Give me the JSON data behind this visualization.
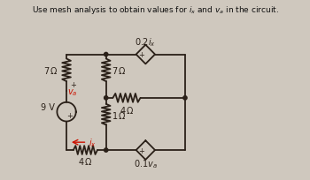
{
  "title": "Use mesh analysis to obtain values for $i_x$ and $v_a$ in the circuit.",
  "bg_color": "#cfc8be",
  "line_color": "#2a2018",
  "red_color": "#cc1100",
  "fig_width": 3.5,
  "fig_height": 2.05,
  "dpi": 100,
  "xFL": 72,
  "xML": 118,
  "xMR": 165,
  "xFR": 210,
  "yTop": 62,
  "yMidUp": 112,
  "yBot": 172,
  "r_src": 11,
  "yCirc": 128,
  "dot_size": 2.2,
  "lw": 1.3
}
